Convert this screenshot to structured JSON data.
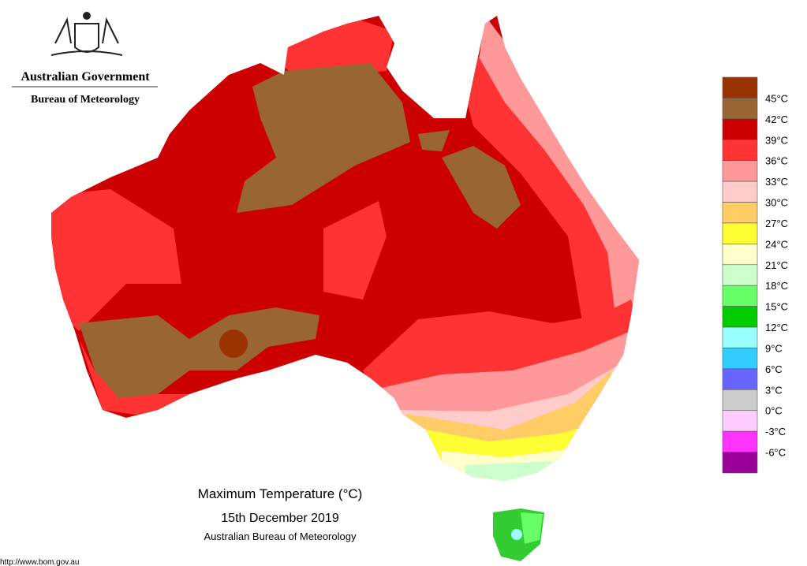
{
  "header": {
    "org": "Australian Government",
    "dept": "Bureau of Meteorology"
  },
  "legend": {
    "labels": [
      "45°C",
      "42°C",
      "39°C",
      "36°C",
      "33°C",
      "30°C",
      "27°C",
      "24°C",
      "21°C",
      "18°C",
      "15°C",
      "12°C",
      "9°C",
      "6°C",
      "3°C",
      "0°C",
      "-3°C",
      "-6°C"
    ],
    "colors": [
      "#993300",
      "#996633",
      "#cc0000",
      "#ff3333",
      "#ff9999",
      "#ffcccc",
      "#ffcc66",
      "#ffff33",
      "#ffffcc",
      "#ccffcc",
      "#66ff66",
      "#00cc00",
      "#99ffff",
      "#33ccff",
      "#6666ff",
      "#cccccc",
      "#ffccff",
      "#ff33ff",
      "#990099"
    ]
  },
  "caption": {
    "title": "Maximum Temperature (°C)",
    "date": "15th December 2019",
    "source": "Australian Bureau of Meteorology"
  },
  "url": "http://www.bom.gov.au"
}
